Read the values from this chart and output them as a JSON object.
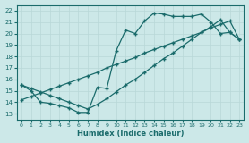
{
  "xlabel": "Humidex (Indice chaleur)",
  "xlim": [
    -0.5,
    23.5
  ],
  "ylim": [
    12.5,
    22.5
  ],
  "xticks": [
    0,
    1,
    2,
    3,
    4,
    5,
    6,
    7,
    8,
    9,
    10,
    11,
    12,
    13,
    14,
    15,
    16,
    17,
    18,
    19,
    20,
    21,
    22,
    23
  ],
  "yticks": [
    13,
    14,
    15,
    16,
    17,
    18,
    19,
    20,
    21,
    22
  ],
  "bg_color": "#cce8e8",
  "line_color": "#1a6b6b",
  "grid_color": "#b8d8d8",
  "line1_x": [
    0,
    1,
    2,
    3,
    4,
    5,
    6,
    7,
    8,
    9,
    10,
    11,
    12,
    13,
    14,
    15,
    16,
    17,
    18,
    19,
    20,
    21,
    22,
    23
  ],
  "line1_y": [
    15.5,
    15.0,
    14.0,
    13.9,
    13.7,
    13.5,
    13.1,
    13.1,
    15.3,
    15.2,
    18.5,
    20.3,
    20.0,
    21.1,
    21.8,
    21.7,
    21.5,
    21.5,
    21.5,
    21.7,
    21.0,
    20.0,
    20.1,
    19.5
  ],
  "line2_x": [
    0,
    1,
    2,
    3,
    4,
    5,
    6,
    7,
    8,
    9,
    10,
    11,
    12,
    13,
    14,
    15,
    16,
    17,
    18,
    19,
    20,
    21,
    22,
    23
  ],
  "line2_y": [
    15.5,
    15.2,
    14.9,
    14.6,
    14.3,
    14.0,
    13.7,
    13.4,
    13.8,
    14.3,
    14.9,
    15.5,
    16.0,
    16.6,
    17.2,
    17.8,
    18.3,
    18.9,
    19.5,
    20.1,
    20.6,
    21.2,
    20.1,
    19.5
  ],
  "line3_x": [
    0,
    1,
    2,
    3,
    4,
    5,
    6,
    7,
    8,
    9,
    10,
    11,
    12,
    13,
    14,
    15,
    16,
    17,
    18,
    19,
    20,
    21,
    22,
    23
  ],
  "line3_y": [
    14.2,
    14.5,
    14.8,
    15.1,
    15.4,
    15.7,
    16.0,
    16.3,
    16.6,
    17.0,
    17.3,
    17.6,
    17.9,
    18.3,
    18.6,
    18.9,
    19.2,
    19.5,
    19.8,
    20.1,
    20.5,
    20.8,
    21.1,
    19.5
  ],
  "marker_size": 2.5,
  "linewidth": 0.9
}
